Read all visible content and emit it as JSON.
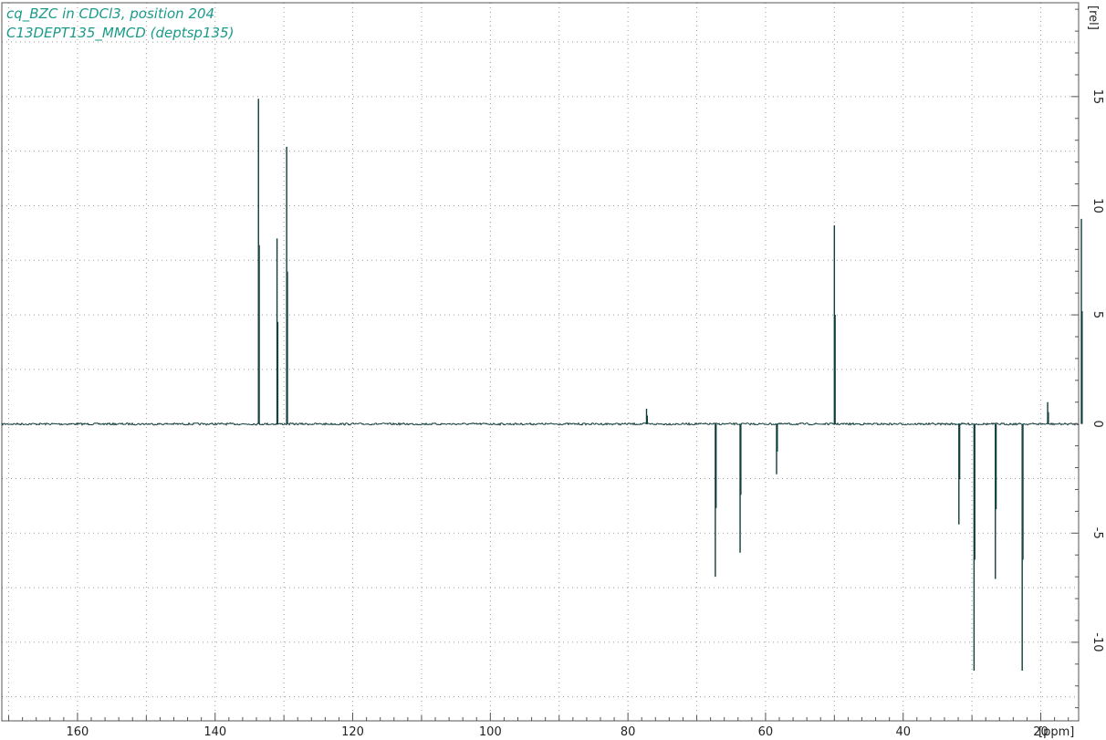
{
  "header": {
    "title_line1": "cq_BZC in CDCl3, position 204",
    "title_line2": "C13DEPT135_MMCD (deptsp135)"
  },
  "colors": {
    "title": "#1a9b8a",
    "spectrum": "#0f3d3a",
    "grid": "#9a9a9a",
    "frame": "#555555",
    "axis_text": "#222222"
  },
  "chart_data": {
    "type": "line",
    "title": "cq_BZC in CDCl3, position 204",
    "subtitle": "C13DEPT135_MMCD (deptsp135)",
    "xlabel": "[ppm]",
    "ylabel": "[rel]",
    "xlim": [
      171,
      14.5
    ],
    "ylim": [
      -13.6,
      19.3
    ],
    "x_reversed": true,
    "grid": true,
    "x_ticks": [
      160,
      140,
      120,
      100,
      80,
      60,
      40,
      20
    ],
    "y_ticks": [
      15,
      10,
      5,
      0,
      -5,
      -10
    ],
    "peaks": [
      {
        "ppm": 133.7,
        "intensity": 14.9
      },
      {
        "ppm": 131.0,
        "intensity": 8.5
      },
      {
        "ppm": 129.6,
        "intensity": 12.7
      },
      {
        "ppm": 77.3,
        "intensity": 0.7
      },
      {
        "ppm": 67.3,
        "intensity": -7.0
      },
      {
        "ppm": 63.7,
        "intensity": -5.9
      },
      {
        "ppm": 58.4,
        "intensity": -2.3
      },
      {
        "ppm": 50.0,
        "intensity": 9.1
      },
      {
        "ppm": 31.9,
        "intensity": -4.6
      },
      {
        "ppm": 29.7,
        "intensity": -11.3
      },
      {
        "ppm": 26.6,
        "intensity": -7.1
      },
      {
        "ppm": 22.7,
        "intensity": -11.3
      },
      {
        "ppm": 19.0,
        "intensity": 1.0
      },
      {
        "ppm": 14.1,
        "intensity": 9.4
      }
    ]
  }
}
